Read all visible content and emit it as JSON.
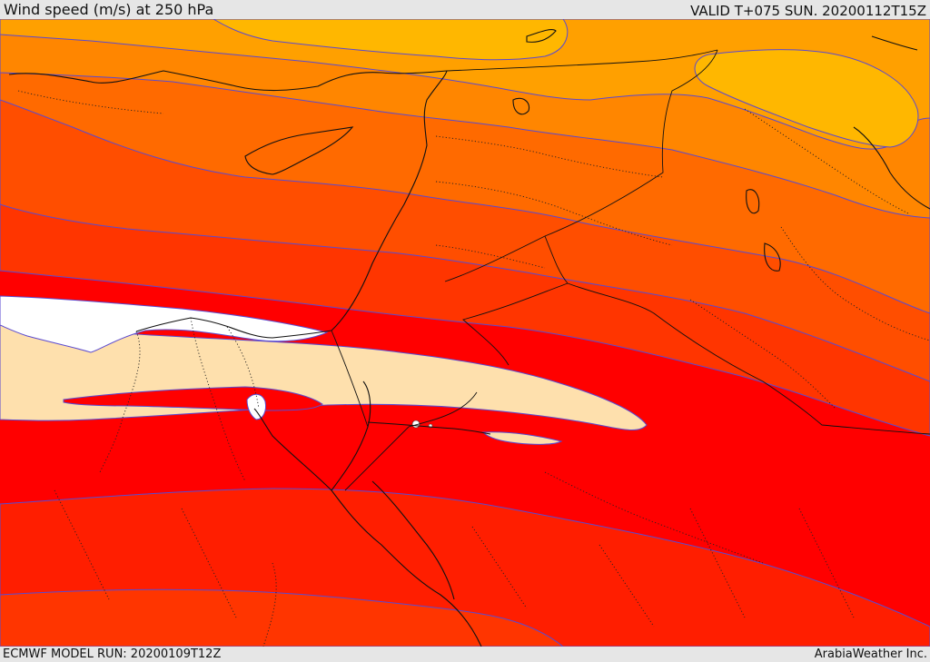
{
  "header": {
    "title": "Wind speed (m/s) at 250 hPa",
    "valid": "VALID T+075 SUN. 20200112T15Z"
  },
  "footer": {
    "model_run": "ECMWF MODEL RUN: 20200109T12Z",
    "credit": "ArabiaWeather Inc."
  },
  "colors": {
    "band_0": "#ffb700",
    "band_1": "#ffa000",
    "band_2": "#ff8600",
    "band_3": "#ff6a00",
    "band_4": "#ff4e00",
    "band_5": "#ff3500",
    "band_6": "#ff1e00",
    "band_7": "#ff0000",
    "low_wind": "#fee0ad",
    "calm": "#ffffff",
    "contour": "#5a4ad0",
    "coast": "#111111"
  }
}
